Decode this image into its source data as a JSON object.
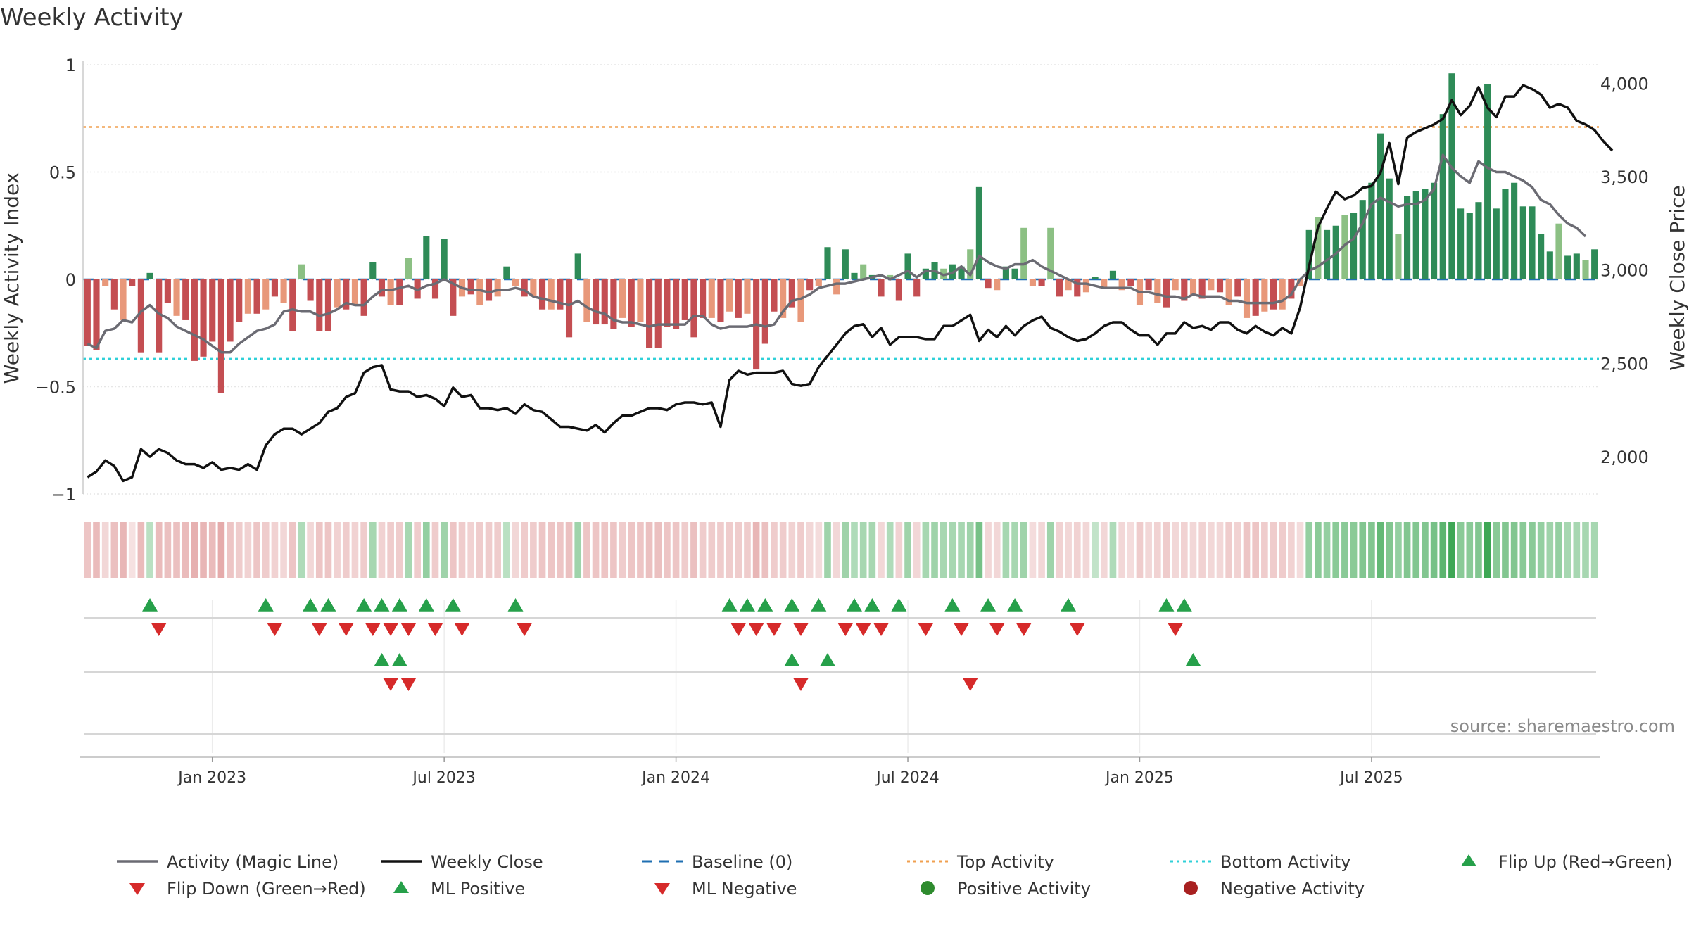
{
  "chart_data": {
    "type": "bar+line",
    "title": "Weekly Activity",
    "ylabel_left": "Weekly Activity Index",
    "ylabel_right": "Weekly Close Price",
    "ylim_left": [
      -1,
      1
    ],
    "ylim_right": [
      1800,
      4100
    ],
    "yticks_left": [
      {
        "v": 1,
        "label": "1"
      },
      {
        "v": 0.5,
        "label": "0.5"
      },
      {
        "v": 0,
        "label": "0"
      },
      {
        "v": -0.5,
        "label": "−0.5"
      },
      {
        "v": -1,
        "label": "−1"
      }
    ],
    "yticks_right": [
      {
        "v": 4000,
        "label": "4,000"
      },
      {
        "v": 3500,
        "label": "3,500"
      },
      {
        "v": 3000,
        "label": "3,000"
      },
      {
        "v": 2500,
        "label": "2,500"
      },
      {
        "v": 2000,
        "label": "2,000"
      }
    ],
    "x_ticks": [
      {
        "week": 14,
        "label": "Jan 2023"
      },
      {
        "week": 40,
        "label": "Jul 2023"
      },
      {
        "week": 66,
        "label": "Jan 2024"
      },
      {
        "week": 92,
        "label": "Jul 2024"
      },
      {
        "week": 118,
        "label": "Jan 2025"
      },
      {
        "week": 144,
        "label": "Jul 2025"
      }
    ],
    "top_activity": 0.71,
    "bottom_activity": -0.37,
    "baseline": 0,
    "weekly_activity": [
      -0.31,
      -0.33,
      -0.03,
      -0.14,
      -0.19,
      -0.03,
      -0.34,
      0.03,
      -0.34,
      -0.11,
      -0.17,
      -0.19,
      -0.38,
      -0.36,
      -0.29,
      -0.53,
      -0.29,
      -0.2,
      -0.16,
      -0.16,
      -0.14,
      -0.08,
      -0.11,
      -0.24,
      0.07,
      -0.1,
      -0.24,
      -0.24,
      -0.13,
      -0.14,
      -0.12,
      -0.17,
      0.08,
      -0.08,
      -0.12,
      -0.12,
      0.1,
      -0.09,
      0.2,
      -0.09,
      0.19,
      -0.17,
      -0.08,
      -0.07,
      -0.12,
      -0.1,
      -0.08,
      0.06,
      -0.03,
      -0.08,
      -0.08,
      -0.14,
      -0.14,
      -0.14,
      -0.27,
      0.12,
      -0.2,
      -0.21,
      -0.21,
      -0.23,
      -0.18,
      -0.22,
      -0.2,
      -0.32,
      -0.32,
      -0.22,
      -0.23,
      -0.19,
      -0.27,
      -0.18,
      -0.18,
      -0.2,
      -0.15,
      -0.18,
      -0.16,
      -0.42,
      -0.3,
      -0.15,
      -0.18,
      -0.13,
      -0.2,
      -0.05,
      -0.03,
      0.15,
      -0.07,
      0.14,
      0.03,
      0.07,
      0.02,
      -0.08,
      0.02,
      -0.1,
      0.12,
      -0.08,
      0.05,
      0.08,
      0.05,
      0.07,
      0.06,
      0.14,
      0.43,
      -0.04,
      -0.05,
      0.06,
      0.05,
      0.24,
      -0.03,
      -0.03,
      0.24,
      -0.08,
      -0.05,
      -0.08,
      -0.06,
      0.01,
      -0.04,
      0.04,
      -0.05,
      -0.03,
      -0.12,
      -0.05,
      -0.11,
      -0.13,
      -0.05,
      -0.1,
      -0.07,
      -0.09,
      -0.05,
      -0.06,
      -0.12,
      -0.08,
      -0.18,
      -0.17,
      -0.15,
      -0.14,
      -0.14,
      -0.09,
      -0.03,
      0.23,
      0.29,
      0.23,
      0.25,
      0.3,
      0.31,
      0.37,
      0.45,
      0.68,
      0.47,
      0.21,
      0.39,
      0.41,
      0.42,
      0.45,
      0.77,
      0.96,
      0.33,
      0.31,
      0.36,
      0.91,
      0.33,
      0.42,
      0.45,
      0.34,
      0.34,
      0.21,
      0.13,
      0.26,
      0.11,
      0.12,
      0.09,
      0.14
    ],
    "magic_line": [
      -0.3,
      -0.32,
      -0.24,
      -0.23,
      -0.19,
      -0.2,
      -0.15,
      -0.12,
      -0.16,
      -0.18,
      -0.22,
      -0.24,
      -0.26,
      -0.28,
      -0.31,
      -0.34,
      -0.34,
      -0.3,
      -0.27,
      -0.24,
      -0.23,
      -0.21,
      -0.15,
      -0.14,
      -0.15,
      -0.15,
      -0.17,
      -0.16,
      -0.14,
      -0.11,
      -0.12,
      -0.12,
      -0.08,
      -0.05,
      -0.05,
      -0.04,
      -0.03,
      -0.05,
      -0.03,
      -0.02,
      0,
      -0.02,
      -0.04,
      -0.05,
      -0.05,
      -0.06,
      -0.05,
      -0.05,
      -0.04,
      -0.05,
      -0.08,
      -0.09,
      -0.1,
      -0.11,
      -0.12,
      -0.1,
      -0.13,
      -0.15,
      -0.16,
      -0.19,
      -0.2,
      -0.2,
      -0.21,
      -0.22,
      -0.21,
      -0.21,
      -0.21,
      -0.21,
      -0.17,
      -0.17,
      -0.21,
      -0.23,
      -0.22,
      -0.22,
      -0.22,
      -0.21,
      -0.22,
      -0.21,
      -0.15,
      -0.1,
      -0.09,
      -0.07,
      -0.04,
      -0.03,
      -0.02,
      -0.02,
      -0.01,
      0,
      0.01,
      0.02,
      0,
      0.02,
      0.04,
      0.01,
      0.04,
      0.04,
      0.02,
      0.03,
      0.06,
      0.02,
      0.11,
      0.08,
      0.06,
      0.05,
      0.07,
      0.07,
      0.09,
      0.06,
      0.04,
      0.02,
      0,
      -0.02,
      -0.02,
      -0.03,
      -0.04,
      -0.04,
      -0.04,
      -0.04,
      -0.06,
      -0.06,
      -0.07,
      -0.08,
      -0.08,
      -0.09,
      -0.07,
      -0.08,
      -0.08,
      -0.08,
      -0.1,
      -0.1,
      -0.11,
      -0.11,
      -0.11,
      -0.11,
      -0.1,
      -0.07,
      0,
      0.04,
      0.06,
      0.09,
      0.12,
      0.16,
      0.19,
      0.26,
      0.35,
      0.38,
      0.36,
      0.34,
      0.35,
      0.35,
      0.37,
      0.42,
      0.58,
      0.52,
      0.48,
      0.45,
      0.55,
      0.52,
      0.5,
      0.5,
      0.48,
      0.46,
      0.43,
      0.37,
      0.35,
      0.3,
      0.26,
      0.24,
      0.2
    ],
    "weekly_close": [
      1890,
      1920,
      1980,
      1950,
      1870,
      1890,
      2040,
      2000,
      2040,
      2020,
      1980,
      1960,
      1960,
      1940,
      1970,
      1930,
      1940,
      1930,
      1960,
      1930,
      2060,
      2120,
      2150,
      2150,
      2120,
      2150,
      2180,
      2240,
      2260,
      2320,
      2340,
      2450,
      2480,
      2490,
      2360,
      2350,
      2350,
      2320,
      2330,
      2310,
      2270,
      2370,
      2320,
      2330,
      2260,
      2260,
      2250,
      2260,
      2230,
      2280,
      2250,
      2240,
      2200,
      2160,
      2160,
      2150,
      2140,
      2170,
      2130,
      2180,
      2220,
      2220,
      2240,
      2260,
      2260,
      2250,
      2280,
      2290,
      2290,
      2280,
      2290,
      2160,
      2410,
      2460,
      2440,
      2450,
      2450,
      2450,
      2460,
      2390,
      2380,
      2390,
      2480,
      2540,
      2600,
      2660,
      2700,
      2710,
      2640,
      2690,
      2600,
      2640,
      2640,
      2640,
      2630,
      2630,
      2700,
      2700,
      2730,
      2760,
      2620,
      2680,
      2640,
      2700,
      2650,
      2700,
      2730,
      2750,
      2690,
      2670,
      2640,
      2620,
      2630,
      2660,
      2700,
      2720,
      2720,
      2680,
      2650,
      2650,
      2600,
      2660,
      2660,
      2720,
      2690,
      2700,
      2680,
      2720,
      2720,
      2680,
      2660,
      2700,
      2670,
      2650,
      2690,
      2660,
      2800,
      3020,
      3230,
      3330,
      3420,
      3380,
      3400,
      3440,
      3450,
      3520,
      3680,
      3460,
      3710,
      3740,
      3760,
      3780,
      3810,
      3910,
      3830,
      3880,
      3980,
      3870,
      3820,
      3930,
      3930,
      3990,
      3970,
      3940,
      3870,
      3890,
      3870,
      3800,
      3780,
      3750,
      3690,
      3640
    ],
    "heat_strip": [
      -0.35,
      -0.45,
      -0.2,
      -0.4,
      -0.5,
      -0.1,
      -0.45,
      0.2,
      -0.45,
      -0.4,
      -0.4,
      -0.45,
      -0.55,
      -0.5,
      -0.45,
      -0.6,
      -0.35,
      -0.3,
      -0.25,
      -0.35,
      -0.3,
      -0.25,
      -0.2,
      -0.35,
      0.25,
      -0.2,
      -0.35,
      -0.35,
      -0.25,
      -0.3,
      -0.25,
      -0.3,
      0.3,
      -0.25,
      -0.3,
      -0.3,
      0.3,
      -0.3,
      0.4,
      -0.3,
      0.35,
      -0.35,
      -0.3,
      -0.25,
      -0.3,
      -0.3,
      -0.3,
      0.2,
      -0.2,
      -0.3,
      -0.3,
      -0.35,
      -0.35,
      -0.35,
      -0.4,
      0.35,
      -0.35,
      -0.35,
      -0.35,
      -0.35,
      -0.3,
      -0.35,
      -0.35,
      -0.4,
      -0.4,
      -0.35,
      -0.35,
      -0.3,
      -0.4,
      -0.3,
      -0.3,
      -0.3,
      -0.3,
      -0.3,
      -0.3,
      -0.5,
      -0.4,
      -0.3,
      -0.3,
      -0.25,
      -0.3,
      -0.2,
      -0.15,
      0.35,
      -0.2,
      0.35,
      0.25,
      0.3,
      0.3,
      -0.2,
      0.25,
      -0.25,
      0.35,
      -0.2,
      0.3,
      0.35,
      0.3,
      0.3,
      0.3,
      0.35,
      0.55,
      -0.2,
      -0.2,
      0.3,
      0.3,
      0.35,
      -0.15,
      -0.2,
      0.35,
      -0.25,
      -0.2,
      -0.25,
      -0.2,
      0.15,
      -0.2,
      0.25,
      -0.2,
      -0.15,
      -0.3,
      -0.2,
      -0.25,
      -0.3,
      -0.2,
      -0.25,
      -0.2,
      -0.25,
      -0.2,
      -0.2,
      -0.3,
      -0.25,
      -0.35,
      -0.35,
      -0.3,
      -0.3,
      -0.3,
      -0.25,
      -0.15,
      0.4,
      0.45,
      0.4,
      0.45,
      0.45,
      0.45,
      0.5,
      0.5,
      0.65,
      0.5,
      0.4,
      0.5,
      0.5,
      0.5,
      0.55,
      0.7,
      0.85,
      0.45,
      0.45,
      0.5,
      0.85,
      0.45,
      0.5,
      0.5,
      0.45,
      0.45,
      0.4,
      0.35,
      0.4,
      0.3,
      0.3,
      0.3,
      0.3
    ],
    "flip_up": [
      7,
      20,
      25,
      27,
      31,
      33,
      35,
      38,
      41,
      48,
      72,
      74,
      76,
      79,
      82,
      86,
      88,
      91,
      97,
      101,
      104,
      110,
      121,
      123
    ],
    "flip_down": [
      8,
      21,
      26,
      29,
      32,
      34,
      36,
      39,
      42,
      49,
      73,
      75,
      77,
      80,
      85,
      87,
      89,
      94,
      98,
      102,
      105,
      111,
      122
    ],
    "ml_positive": [
      33,
      35,
      79,
      83,
      124
    ],
    "ml_negative": [
      34,
      36,
      80,
      99
    ],
    "legend": [
      {
        "label": "Activity (Magic Line)",
        "type": "line",
        "color": "#6b6b73"
      },
      {
        "label": "Weekly Close",
        "type": "line",
        "color": "#111111"
      },
      {
        "label": "Baseline (0)",
        "type": "dash",
        "color": "#1f6fb2"
      },
      {
        "label": "Top Activity",
        "type": "dot",
        "color": "#f0a050"
      },
      {
        "label": "Bottom Activity",
        "type": "dot",
        "color": "#30d0d8"
      },
      {
        "label": "Flip Up (Red→Green)",
        "type": "up",
        "color": "#26a04a"
      },
      {
        "label": "Flip Down (Green→Red)",
        "type": "down",
        "color": "#d62a2a"
      },
      {
        "label": "ML Positive",
        "type": "up",
        "color": "#26a04a"
      },
      {
        "label": "ML Negative",
        "type": "down",
        "color": "#d62a2a"
      },
      {
        "label": "Positive Activity",
        "type": "circle",
        "color": "#2e8b2e"
      },
      {
        "label": "Negative Activity",
        "type": "circle",
        "color": "#a82020"
      }
    ],
    "source": "source: sharemaestro.com"
  },
  "colors": {
    "pos_strong": "#2e8b57",
    "pos_light": "#8cc084",
    "neg_strong": "#c44e52",
    "neg_light": "#e8987a",
    "magic_line": "#6b6b73",
    "close_line": "#111111",
    "baseline": "#1f6fb2",
    "top": "#f0a050",
    "bottom": "#30d0d8",
    "up": "#26a04a",
    "down": "#d62a2a"
  }
}
